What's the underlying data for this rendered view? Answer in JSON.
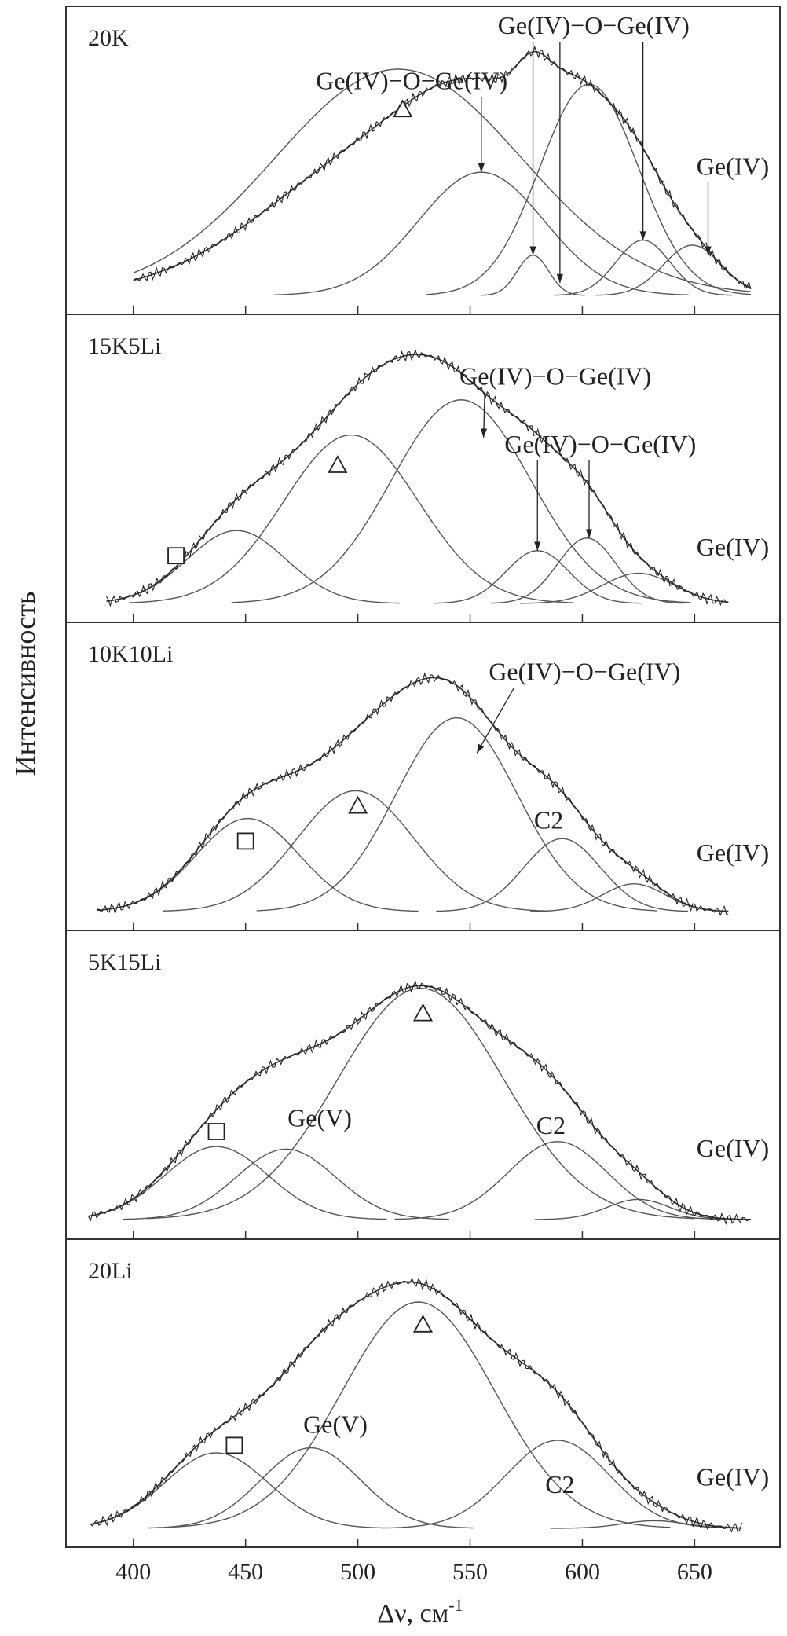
{
  "chart_data": {
    "type": "line",
    "title": "",
    "xlabel": "Δν, см",
    "xlabel_sup": "-1",
    "ylabel": "Интенсивность",
    "xlim": [
      370,
      688
    ],
    "xticks": [
      400,
      450,
      500,
      550,
      600,
      650
    ],
    "xtick_labels": [
      "400",
      "450",
      "500",
      "550",
      "600",
      "650"
    ],
    "ylim": [
      0,
      1.1
    ],
    "grid": false,
    "panels": [
      {
        "label": "20K",
        "range": [
          400,
          675
        ],
        "envelope_amp": 0.97,
        "components": [
          {
            "center": 518,
            "width": 55,
            "amp": 0.9
          },
          {
            "center": 555,
            "width": 28,
            "amp": 0.49
          },
          {
            "center": 578,
            "width": 7,
            "amp": 0.16
          },
          {
            "center": 603,
            "width": 22,
            "amp": 0.84
          },
          {
            "center": 627,
            "width": 12,
            "amp": 0.22
          },
          {
            "center": 649,
            "width": 13,
            "amp": 0.2
          }
        ],
        "annotations": [
          {
            "text": "Ge(IV)−O−Ge(IV)",
            "x": 524,
            "y": 0.82,
            "arrows": [
              [
                555,
                0.49
              ]
            ]
          },
          {
            "text": "Ge(IV)−O−Ge(IV)",
            "x": 605,
            "y": 1.04,
            "arrows": [
              [
                578,
                0.16
              ],
              [
                590,
                0.05
              ],
              [
                627,
                0.22
              ]
            ]
          },
          {
            "text": "Ge(IV)",
            "x": 667,
            "y": 0.48,
            "arrows": [
              [
                656,
                0.16
              ]
            ]
          }
        ],
        "markers": [
          {
            "shape": "triangle",
            "x": 520,
            "y": 0.74
          }
        ]
      },
      {
        "label": "15K5Li",
        "range": [
          388,
          665
        ],
        "envelope_amp": 0.99,
        "components": [
          {
            "center": 446,
            "width": 22,
            "amp": 0.29
          },
          {
            "center": 497,
            "width": 30,
            "amp": 0.67
          },
          {
            "center": 546,
            "width": 31,
            "amp": 0.81
          },
          {
            "center": 580,
            "width": 14,
            "amp": 0.21
          },
          {
            "center": 602,
            "width": 13,
            "amp": 0.26
          },
          {
            "center": 625,
            "width": 16,
            "amp": 0.12
          }
        ],
        "annotations": [
          {
            "text": "Ge(IV)−O−Ge(IV)",
            "x": 588,
            "y": 0.87,
            "arrows": [
              [
                556,
                0.66
              ]
            ]
          },
          {
            "text": "Ge(IV)−O−Ge(IV)",
            "x": 608,
            "y": 0.6,
            "arrows": [
              [
                580,
                0.21
              ],
              [
                603,
                0.26
              ]
            ]
          },
          {
            "text": "Ge(IV)",
            "x": 667,
            "y": 0.19,
            "arrows": []
          }
        ],
        "markers": [
          {
            "shape": "square",
            "x": 419,
            "y": 0.19
          },
          {
            "shape": "triangle",
            "x": 491,
            "y": 0.55
          }
        ]
      },
      {
        "label": "10K10Li",
        "range": [
          384,
          665
        ],
        "envelope_amp": 0.93,
        "components": [
          {
            "center": 451,
            "width": 23,
            "amp": 0.37
          },
          {
            "center": 499,
            "width": 26,
            "amp": 0.48
          },
          {
            "center": 544,
            "width": 27,
            "amp": 0.77
          },
          {
            "center": 591,
            "width": 17,
            "amp": 0.29
          },
          {
            "center": 623,
            "width": 14,
            "amp": 0.11
          }
        ],
        "annotations": [
          {
            "text": "Ge(IV)−O−Ge(IV)",
            "x": 601,
            "y": 0.92,
            "arrows": [
              [
                553,
                0.63
              ]
            ]
          },
          {
            "text": "C2",
            "x": 585,
            "y": 0.33,
            "arrows": []
          },
          {
            "text": "Ge(IV)",
            "x": 667,
            "y": 0.2,
            "arrows": []
          }
        ],
        "markers": [
          {
            "shape": "square",
            "x": 450,
            "y": 0.28
          },
          {
            "shape": "triangle",
            "x": 500,
            "y": 0.42
          }
        ]
      },
      {
        "label": "5K15Li",
        "range": [
          380,
          675
        ],
        "envelope_amp": 0.93,
        "components": [
          {
            "center": 437,
            "width": 23,
            "amp": 0.29
          },
          {
            "center": 468,
            "width": 22,
            "amp": 0.28
          },
          {
            "center": 528,
            "width": 37,
            "amp": 0.92
          },
          {
            "center": 589,
            "width": 22,
            "amp": 0.31
          },
          {
            "center": 625,
            "width": 14,
            "amp": 0.08
          }
        ],
        "annotations": [
          {
            "text": "Ge(V)",
            "x": 483,
            "y": 0.37,
            "arrows": []
          },
          {
            "text": "C2",
            "x": 586,
            "y": 0.34,
            "arrows": []
          },
          {
            "text": "Ge(IV)",
            "x": 667,
            "y": 0.25,
            "arrows": []
          }
        ],
        "markers": [
          {
            "shape": "square",
            "x": 437,
            "y": 0.35
          },
          {
            "shape": "triangle",
            "x": 529,
            "y": 0.82
          }
        ]
      },
      {
        "label": "20Li",
        "range": [
          381,
          671
        ],
        "envelope_amp": 0.98,
        "components": [
          {
            "center": 437,
            "width": 23,
            "amp": 0.3
          },
          {
            "center": 479,
            "width": 22,
            "amp": 0.32
          },
          {
            "center": 527,
            "width": 34,
            "amp": 0.9
          },
          {
            "center": 589,
            "width": 23,
            "amp": 0.35
          },
          {
            "center": 632,
            "width": 14,
            "amp": 0.03
          }
        ],
        "annotations": [
          {
            "text": "Ge(V)",
            "x": 490,
            "y": 0.38,
            "arrows": []
          },
          {
            "text": "C2",
            "x": 590,
            "y": 0.14,
            "arrows": []
          },
          {
            "text": "Ge(IV)",
            "x": 667,
            "y": 0.17,
            "arrows": []
          }
        ],
        "markers": [
          {
            "shape": "square",
            "x": 445,
            "y": 0.33
          },
          {
            "shape": "triangle",
            "x": 529,
            "y": 0.81
          }
        ]
      }
    ]
  }
}
